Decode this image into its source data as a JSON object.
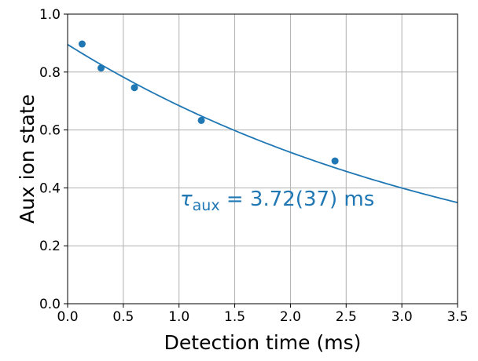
{
  "chart_data": {
    "type": "scatter",
    "xlabel": "Detection time (ms)",
    "ylabel": "Aux ion state",
    "xlim": [
      0.0,
      3.5
    ],
    "ylim": [
      0.0,
      1.0
    ],
    "x_ticks": [
      "0.0",
      "0.5",
      "1.0",
      "1.5",
      "2.0",
      "2.5",
      "3.0",
      "3.5"
    ],
    "y_ticks": [
      "0.0",
      "0.2",
      "0.4",
      "0.6",
      "0.8",
      "1.0"
    ],
    "grid": true,
    "color": "#1f77b4",
    "series": [
      {
        "kind": "points",
        "x": [
          0.13,
          0.3,
          0.6,
          1.2,
          2.4
        ],
        "y": [
          0.897,
          0.814,
          0.746,
          0.633,
          0.493
        ]
      },
      {
        "kind": "fit",
        "model": "exponential decay",
        "amplitude": 0.895,
        "tau": 3.72
      }
    ],
    "annotation": {
      "symbol": "τ",
      "subscript": "aux",
      "text": " = 3.72(37) ms"
    }
  }
}
